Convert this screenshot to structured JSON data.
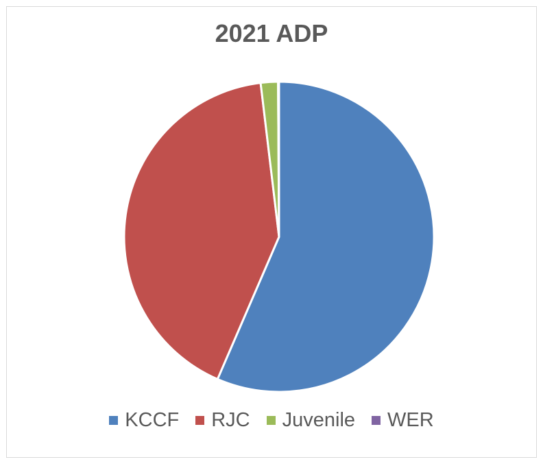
{
  "chart_data": {
    "type": "pie",
    "title": "2021 ADP",
    "categories": [
      "KCCF",
      "RJC",
      "Juvenile",
      "WER"
    ],
    "values": [
      56.5,
      41.6,
      1.8,
      0.1
    ],
    "unit": "%",
    "colors": [
      "#4f81bd",
      "#c0504d",
      "#9bbb59",
      "#8064a2"
    ],
    "start_angle_deg": 0,
    "direction": "clockwise",
    "legend_position": "bottom",
    "slice_border_color": "#ffffff"
  }
}
